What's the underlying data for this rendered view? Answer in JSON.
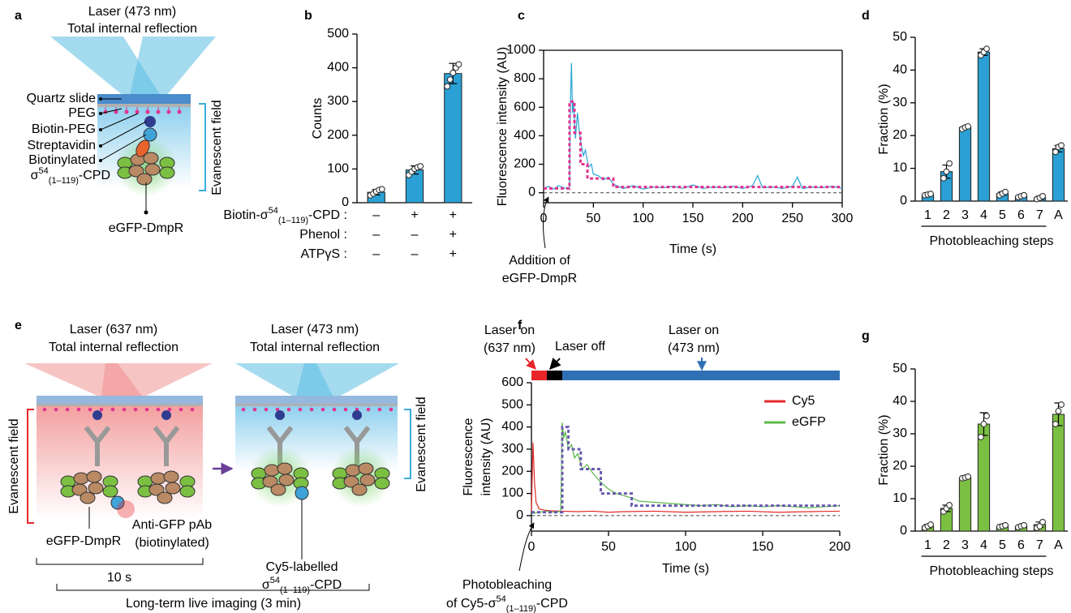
{
  "panels": [
    "a",
    "b",
    "c",
    "d",
    "e",
    "f",
    "g"
  ],
  "diagram_a": {
    "laser": [
      "Laser (473 nm)",
      "Total internal reflection"
    ],
    "labels": [
      "Quartz slide",
      "PEG",
      "Biotin-PEG",
      "Streptavidin",
      "Biotinylated",
      [
        "σ",
        {
          "sup": "54"
        },
        {
          "sub": "(1–119)"
        },
        "-CPD"
      ]
    ],
    "field": "Evanescent field",
    "protein": "eGFP-DmpR"
  },
  "diagram_e": {
    "left_laser": [
      "Laser (637 nm)",
      "Total internal reflection"
    ],
    "right_laser": [
      "Laser (473 nm)",
      "Total internal reflection"
    ],
    "field_left": "Evanescent field",
    "field_right": "Evanescent field",
    "antibody": [
      "Anti-GFP pAb",
      "(biotinylated)"
    ],
    "protein": "eGFP-DmpR",
    "cy5": [
      "Cy5-labelled",
      [
        "σ",
        {
          "sup": "54"
        },
        {
          "sub": "(1–119)"
        },
        "-CPD"
      ]
    ],
    "short": "10 s",
    "long": "Long-term live imaging (3 min)"
  },
  "chart_data": [
    {
      "type": "bar",
      "ylabel": "Counts",
      "categories": [
        null,
        null,
        null
      ],
      "values": [
        31,
        97,
        383
      ],
      "errors": [
        8,
        12,
        30
      ],
      "points": [
        [
          22,
          27,
          33,
          38,
          40
        ],
        [
          82,
          92,
          100,
          105,
          108
        ],
        [
          345,
          365,
          385,
          400,
          410
        ]
      ],
      "color": "#2aa0d4",
      "ylim": [
        0,
        500
      ],
      "yticks": [
        0,
        100,
        200,
        300,
        400,
        500
      ],
      "conditions": [
        {
          "label": [
            "Biotin-σ",
            {
              "sup": "54"
            },
            {
              "sub": "(1–119)"
            },
            "-CPD :"
          ],
          "signs": [
            "–",
            "+",
            "+"
          ]
        },
        {
          "label": "Phenol :",
          "signs": [
            "–",
            "–",
            "+"
          ]
        },
        {
          "label": "ATPγS :",
          "signs": [
            "–",
            "–",
            "+"
          ]
        }
      ]
    },
    {
      "type": "line",
      "ylabel": "Fluorescence intensity (AU)",
      "xlabel": "Time (s)",
      "frame": true,
      "xlim": [
        0,
        300
      ],
      "xticks": [
        0,
        50,
        100,
        150,
        200,
        250,
        300
      ],
      "ylim": [
        -70,
        1000
      ],
      "yticks": [
        0,
        200,
        400,
        600,
        800,
        1000
      ],
      "baseline": 0,
      "annotation": [
        "Addition of",
        "eGFP-DmpR"
      ],
      "series": [
        {
          "color": "#29a5d5",
          "x": [
            0,
            5,
            10,
            15,
            20,
            24,
            26,
            27,
            28,
            29,
            30,
            32,
            34,
            36,
            38,
            40,
            42,
            45,
            48,
            50,
            55,
            60,
            65,
            70,
            75,
            80,
            90,
            100,
            110,
            120,
            130,
            140,
            150,
            160,
            170,
            180,
            190,
            200,
            210,
            215,
            220,
            230,
            240,
            250,
            255,
            260,
            270,
            280,
            290,
            300
          ],
          "values": [
            30,
            45,
            25,
            50,
            35,
            30,
            40,
            650,
            910,
            560,
            640,
            380,
            560,
            420,
            330,
            260,
            300,
            180,
            200,
            130,
            120,
            90,
            110,
            60,
            45,
            30,
            50,
            25,
            40,
            35,
            45,
            30,
            55,
            30,
            40,
            35,
            45,
            30,
            50,
            120,
            35,
            40,
            30,
            45,
            110,
            30,
            40,
            35,
            45,
            30
          ]
        },
        {
          "color": "#e0338f",
          "dash": true,
          "x": [
            0,
            26,
            26,
            31,
            31,
            37,
            37,
            44,
            44,
            70,
            70,
            300
          ],
          "values": [
            30,
            30,
            640,
            640,
            420,
            420,
            200,
            200,
            100,
            100,
            40,
            40
          ]
        }
      ]
    },
    {
      "type": "bar",
      "ylabel": "Fraction (%)",
      "xlabel": "Photobleaching steps",
      "categories": [
        "1",
        "2",
        "3",
        "4",
        "5",
        "6",
        "7",
        "A"
      ],
      "values": [
        2,
        9,
        22.5,
        45.5,
        2.3,
        1.5,
        1,
        16
      ],
      "errors": [
        0.3,
        2,
        0.3,
        1,
        0.5,
        0.3,
        0.5,
        1
      ],
      "points": [
        [
          1.8,
          2,
          2.2
        ],
        [
          7,
          9,
          11.5
        ],
        [
          22,
          22.5,
          22.8
        ],
        [
          44.5,
          45.5,
          46.5
        ],
        [
          1.8,
          2.3,
          2.8
        ],
        [
          1.2,
          1.5,
          1.8
        ],
        [
          0.6,
          1,
          1.5
        ],
        [
          15,
          16.5,
          17
        ]
      ],
      "color": "#2aa0d4",
      "ylim": [
        0,
        50
      ],
      "yticks": [
        0,
        10,
        20,
        30,
        40,
        50
      ]
    },
    {
      "type": "line",
      "ylabel": [
        "Fluorescence",
        "intensity (AU)"
      ],
      "xlabel": "Time (s)",
      "xlim": [
        0,
        200
      ],
      "xticks": [
        0,
        50,
        100,
        150,
        200
      ],
      "ylim": [
        -70,
        600
      ],
      "yticks": [
        0,
        100,
        200,
        300,
        400,
        500,
        600
      ],
      "baseline": 0,
      "annotation": [
        "Photobleaching",
        [
          "of Cy5-σ",
          {
            "sup": "54"
          },
          {
            "sub": "(1–119)"
          },
          "-CPD"
        ]
      ],
      "timeline": [
        {
          "label": [
            "Laser on",
            "(637 nm)"
          ],
          "start": 0,
          "end": 10,
          "color": "#e8262a"
        },
        {
          "label": [
            "Laser off"
          ],
          "start": 10,
          "end": 20,
          "color": "#000000"
        },
        {
          "label": [
            "Laser on",
            "(473 nm)"
          ],
          "start": 20,
          "end": 200,
          "color": "#2f70b5"
        }
      ],
      "series": [
        {
          "name": "Cy5",
          "color": "#e42a2a",
          "x": [
            0,
            1,
            2,
            3,
            5,
            8,
            12,
            20,
            30,
            40,
            50,
            60,
            80,
            100,
            120,
            140,
            160,
            180,
            200
          ],
          "values": [
            20,
            330,
            150,
            60,
            30,
            25,
            22,
            20,
            18,
            20,
            15,
            18,
            20,
            15,
            18,
            20,
            15,
            18,
            20
          ]
        },
        {
          "name": "eGFP",
          "color": "#5cb84a",
          "x": [
            0,
            5,
            10,
            15,
            19,
            20,
            21,
            22,
            24,
            26,
            28,
            30,
            33,
            36,
            40,
            45,
            50,
            55,
            60,
            65,
            70,
            80,
            90,
            100,
            110,
            120,
            130,
            140,
            150,
            160,
            170,
            180,
            190,
            200
          ],
          "values": [
            10,
            15,
            20,
            15,
            20,
            420,
            350,
            380,
            300,
            320,
            260,
            280,
            210,
            230,
            190,
            150,
            120,
            100,
            90,
            80,
            65,
            60,
            55,
            50,
            45,
            50,
            40,
            45,
            40,
            45,
            40,
            35,
            40,
            45
          ]
        },
        {
          "color": "#6a5ab0",
          "dash": true,
          "x": [
            0,
            20,
            20,
            24,
            24,
            32,
            32,
            45,
            45,
            65,
            65,
            200
          ],
          "values": [
            15,
            15,
            400,
            400,
            300,
            300,
            210,
            210,
            100,
            100,
            45,
            45
          ]
        }
      ]
    },
    {
      "type": "bar",
      "ylabel": "Fraction (%)",
      "xlabel": "Photobleaching steps",
      "categories": [
        "1",
        "2",
        "3",
        "4",
        "5",
        "6",
        "7",
        "A"
      ],
      "values": [
        1.5,
        7,
        16.5,
        33,
        1.5,
        1.5,
        2,
        36
      ],
      "errors": [
        0.5,
        1,
        0.3,
        3.5,
        0.3,
        0.3,
        0.8,
        3.5
      ],
      "points": [
        [
          1,
          1.5,
          2
        ],
        [
          6,
          7,
          8
        ],
        [
          16.3,
          16.5,
          16.8
        ],
        [
          29,
          33,
          35.5
        ],
        [
          1.3,
          1.5,
          1.8
        ],
        [
          1.2,
          1.5,
          1.8
        ],
        [
          1,
          1.5,
          2.8
        ],
        [
          33,
          37,
          39
        ]
      ],
      "color": "#7cc043",
      "ylim": [
        0,
        50
      ],
      "yticks": [
        0,
        10,
        20,
        30,
        40,
        50
      ]
    }
  ]
}
